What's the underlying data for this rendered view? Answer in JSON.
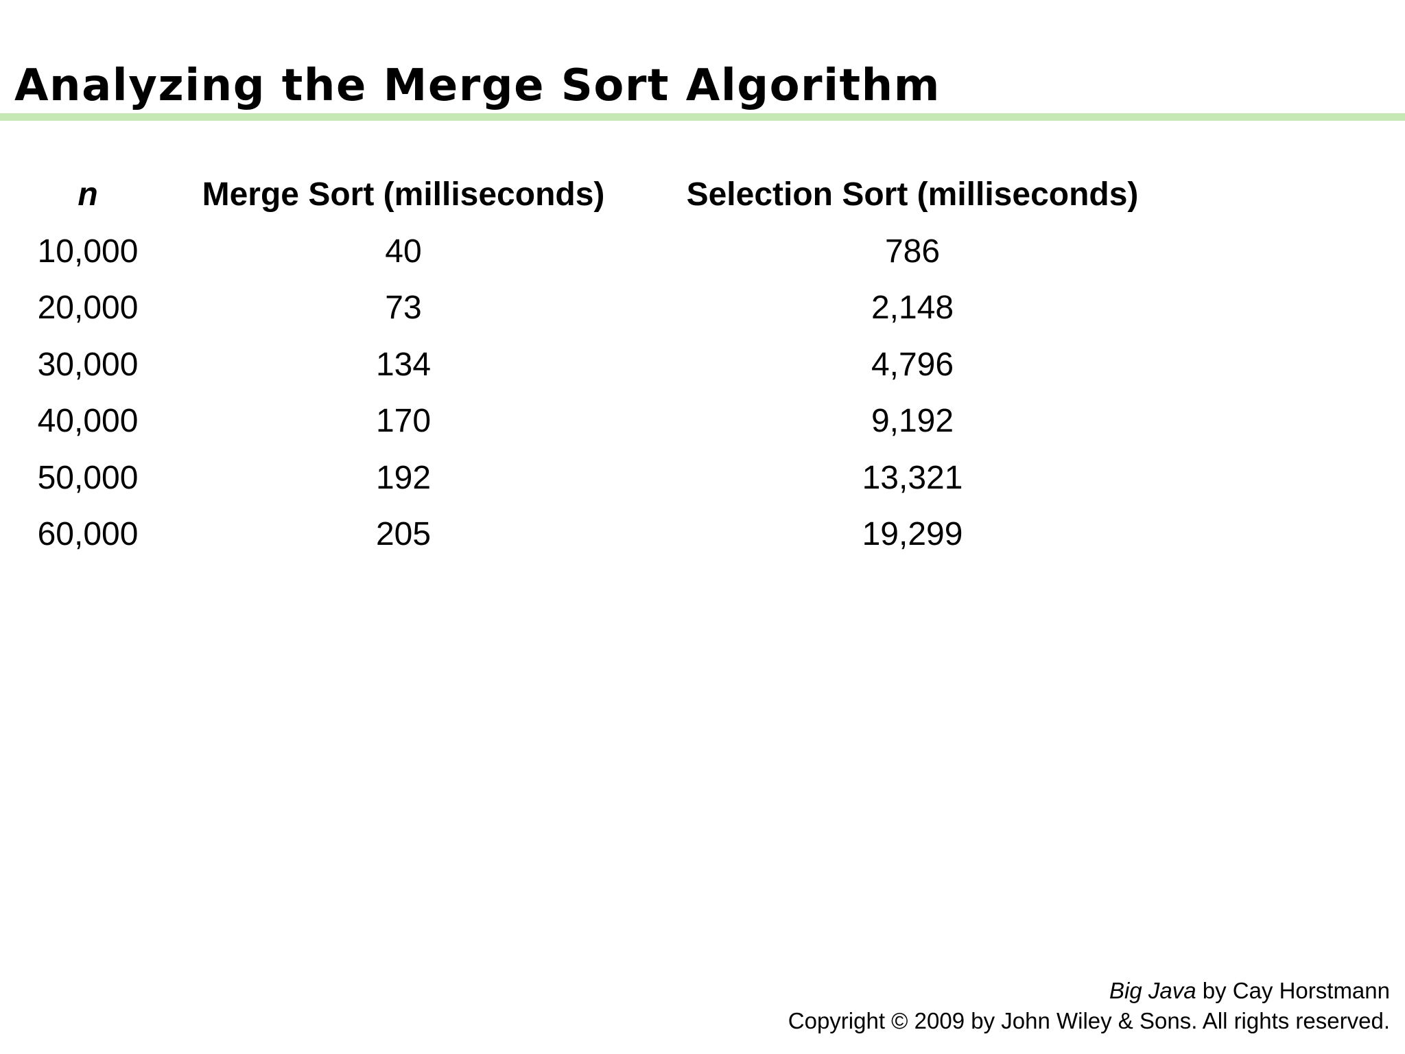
{
  "slide": {
    "title": "Analyzing the Merge Sort Algorithm",
    "accent_color": "#c6e8b5"
  },
  "table": {
    "headers": [
      "n",
      "Merge Sort (milliseconds)",
      "Selection Sort (milliseconds)"
    ],
    "rows": [
      [
        "10,000",
        "40",
        "786"
      ],
      [
        "20,000",
        "73",
        "2,148"
      ],
      [
        "30,000",
        "134",
        "4,796"
      ],
      [
        "40,000",
        "170",
        "9,192"
      ],
      [
        "50,000",
        "192",
        "13,321"
      ],
      [
        "60,000",
        "205",
        "19,299"
      ]
    ]
  },
  "footer": {
    "book_title": "Big Java",
    "author_text": " by Cay Horstmann",
    "copyright": "Copyright © 2009 by John Wiley & Sons.  All rights reserved."
  }
}
